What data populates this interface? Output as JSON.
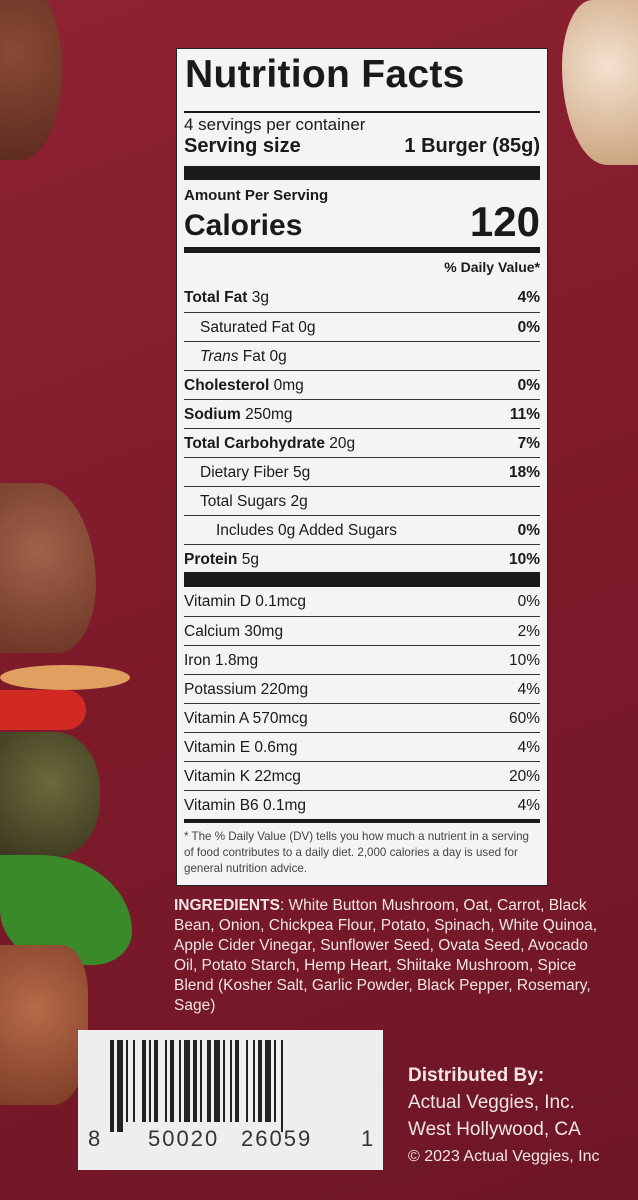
{
  "nutrition": {
    "title": "Nutrition Facts",
    "servings_per_container": "4 servings per container",
    "serving_size_label": "Serving size",
    "serving_size_value": "1 Burger (85g)",
    "amount_per_serving": "Amount Per Serving",
    "calories_label": "Calories",
    "calories_value": "120",
    "daily_value_header": "% Daily Value*",
    "nutrients": [
      {
        "name": "Total Fat",
        "amount": "3g",
        "dv": "4%",
        "bold": true,
        "indent": 0
      },
      {
        "name": "Saturated Fat",
        "amount": "0g",
        "dv": "0%",
        "bold": false,
        "indent": 1
      },
      {
        "name": "Trans",
        "suffix": "Fat",
        "amount": "0g",
        "dv": "",
        "bold": false,
        "indent": 1,
        "italic": true
      },
      {
        "name": "Cholesterol",
        "amount": "0mg",
        "dv": "0%",
        "bold": true,
        "indent": 0
      },
      {
        "name": "Sodium",
        "amount": "250mg",
        "dv": "11%",
        "bold": true,
        "indent": 0
      },
      {
        "name": "Total Carbohydrate",
        "amount": "20g",
        "dv": "7%",
        "bold": true,
        "indent": 0
      },
      {
        "name": "Dietary Fiber",
        "amount": "5g",
        "dv": "18%",
        "bold": false,
        "indent": 1
      },
      {
        "name": "Total Sugars",
        "amount": "2g",
        "dv": "",
        "bold": false,
        "indent": 1
      },
      {
        "name": "Includes 0g Added Sugars",
        "amount": "",
        "dv": "0%",
        "bold": false,
        "indent": 2
      },
      {
        "name": "Protein",
        "amount": "5g",
        "dv": "10%",
        "bold": true,
        "indent": 0
      }
    ],
    "vitamins": [
      {
        "name": "Vitamin D 0.1mcg",
        "dv": "0%"
      },
      {
        "name": "Calcium 30mg",
        "dv": "2%"
      },
      {
        "name": "Iron 1.8mg",
        "dv": "10%"
      },
      {
        "name": "Potassium 220mg",
        "dv": "4%"
      },
      {
        "name": "Vitamin A 570mcg",
        "dv": "60%"
      },
      {
        "name": "Vitamin E 0.6mg",
        "dv": "4%"
      },
      {
        "name": "Vitamin K 22mcg",
        "dv": "20%"
      },
      {
        "name": "Vitamin B6 0.1mg",
        "dv": "4%"
      }
    ],
    "footnote": "* The % Daily Value (DV) tells you how much a nutrient in a serving of food contributes to a daily diet. 2,000 calories a day is used for general nutrition advice."
  },
  "ingredients": {
    "label": "INGREDIENTS",
    "text": ": White Button Mushroom, Oat, Carrot, Black Bean, Onion, Chickpea Flour, Potato, Spinach, White Quinoa, Apple Cider Vinegar, Sunflower Seed, Ovata Seed, Avocado Oil, Potato Starch, Hemp Heart, Shiitake Mushroom, Spice Blend (Kosher Salt, Garlic Powder, Black Pepper, Rosemary, Sage)"
  },
  "barcode": {
    "digits": [
      "8",
      "50020",
      "26059",
      "1"
    ]
  },
  "distributor": {
    "heading": "Distributed By:",
    "company": "Actual Veggies, Inc.",
    "location": "West Hollywood, CA",
    "copyright": "© 2023 Actual Veggies, Inc"
  },
  "colors": {
    "background": "#8a1f2e",
    "label": "#f4f4f6",
    "text_on_bg": "#f3e6e6"
  }
}
